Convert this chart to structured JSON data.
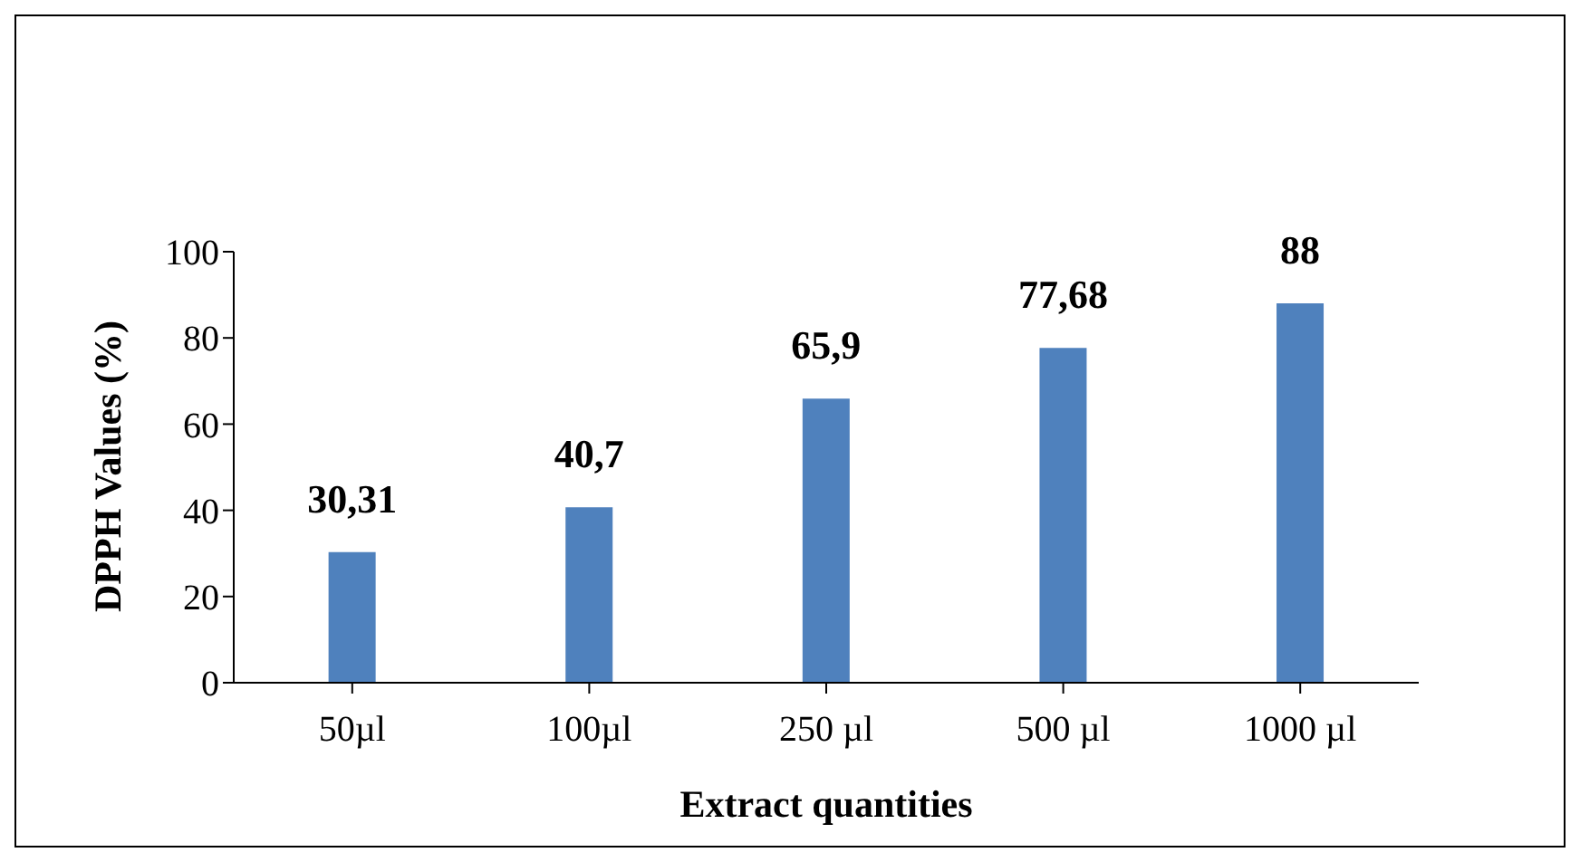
{
  "chart_data": {
    "type": "bar",
    "xlabel": "Extract quantities",
    "ylabel": "DPPH Values (%)",
    "categories": [
      "50µl",
      "100µl",
      "250 µl",
      "500 µl",
      "1000 µl"
    ],
    "values": [
      30.31,
      40.7,
      65.9,
      77.68,
      88
    ],
    "value_labels": [
      "30,31",
      "40,7",
      "65,9",
      "77,68",
      "88"
    ],
    "color": "#4f81bd",
    "ylim": [
      0,
      100
    ],
    "yticks": [
      0,
      20,
      40,
      60,
      80,
      100
    ],
    "grid": false,
    "legend": false
  }
}
